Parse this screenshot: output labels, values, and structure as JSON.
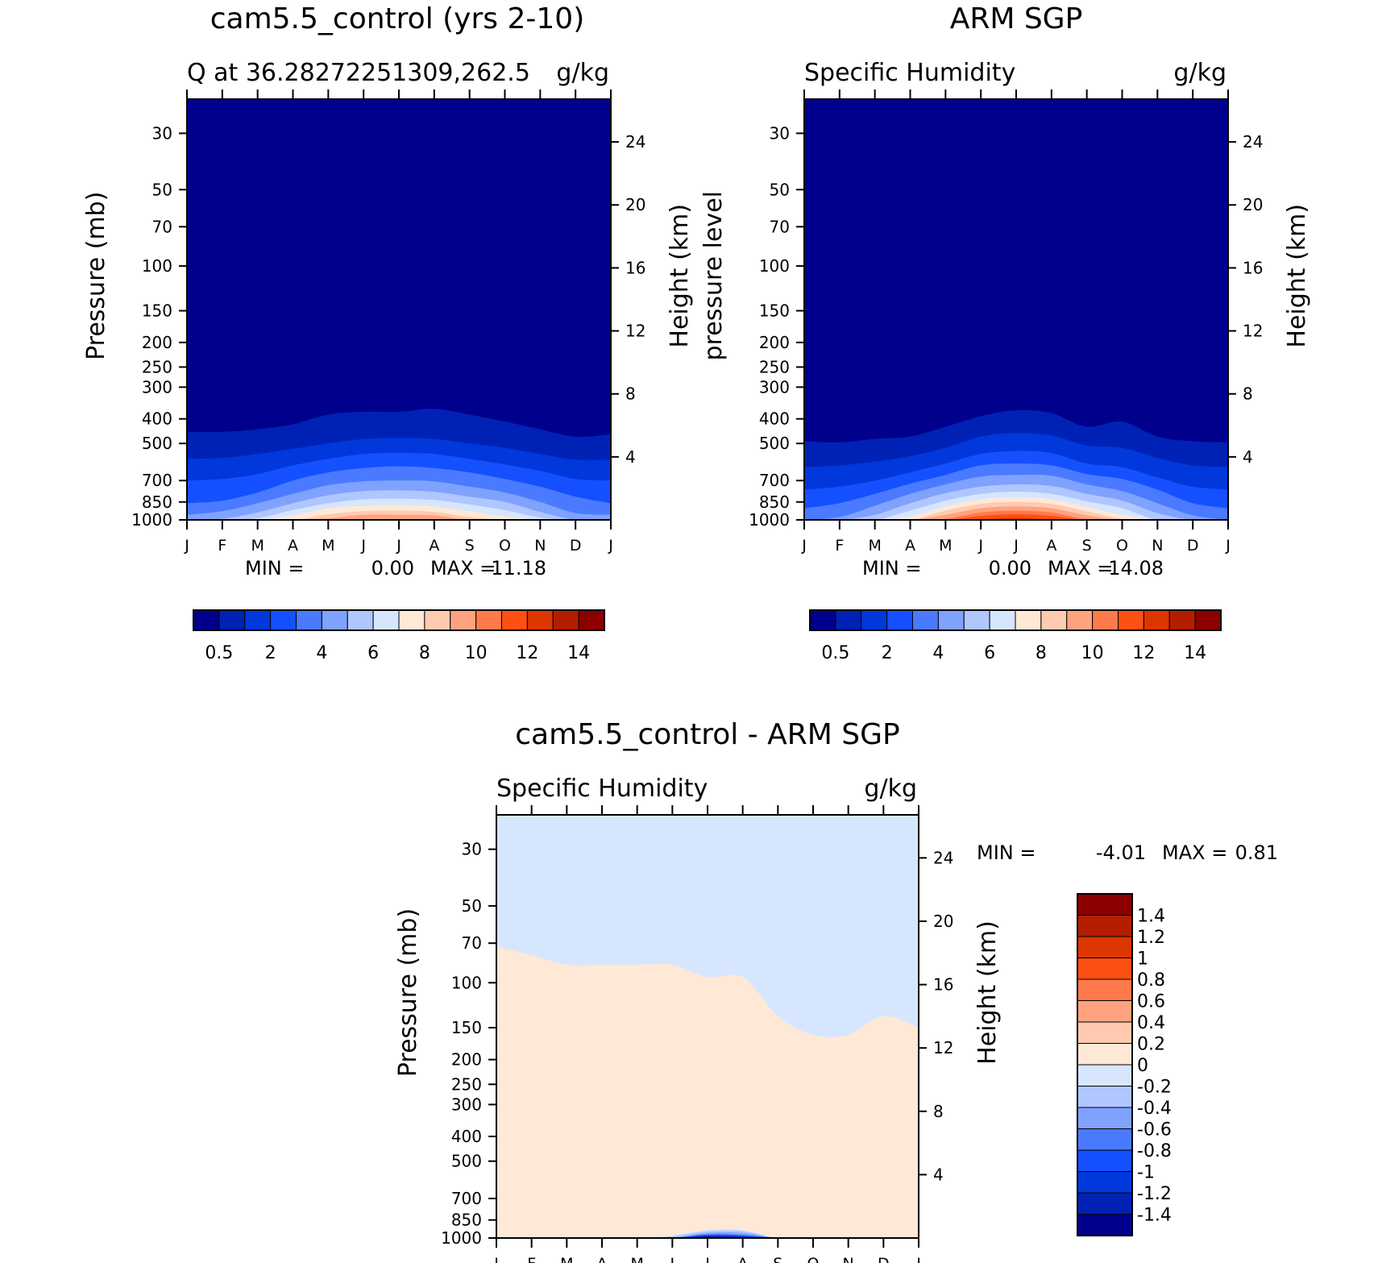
{
  "chart_data": [
    {
      "type": "heatmap",
      "title": "cam5.5_control (yrs 2-10)",
      "subtitle_left": "Q at 36.28272251309,262.5",
      "subtitle_right": "g/kg",
      "ylabel": "Pressure (mb)",
      "y2label": "Height (km)",
      "minmax": {
        "min_label": "MIN =",
        "min_value": "0.00",
        "max_label": "MAX =",
        "max_value": "11.18"
      },
      "months": [
        "J",
        "F",
        "M",
        "A",
        "M",
        "J",
        "J",
        "A",
        "S",
        "O",
        "N",
        "D",
        "J"
      ],
      "pressure_ticks": [
        "30",
        "50",
        "70",
        "100",
        "150",
        "200",
        "250",
        "300",
        "400",
        "500",
        "700",
        "850",
        "1000"
      ],
      "pressure_values": [
        30,
        50,
        70,
        100,
        150,
        200,
        250,
        300,
        400,
        500,
        700,
        850,
        1000
      ],
      "height_ticks": [
        "24",
        "20",
        "16",
        "12",
        "8",
        "4"
      ],
      "height_values": [
        24,
        20,
        16,
        12,
        8,
        4
      ],
      "ylim": [
        1000,
        22
      ],
      "legend": {
        "orientation": "horizontal",
        "placement": "bottom",
        "labels": [
          "0.5",
          "2",
          "4",
          "6",
          "8",
          "10",
          "12",
          "14"
        ]
      },
      "contour_levels_pressure": [
        [
          450,
          450,
          440,
          420,
          385,
          375,
          375,
          365,
          385,
          410,
          440,
          470,
          460
        ],
        [
          575,
          570,
          550,
          525,
          500,
          480,
          475,
          480,
          500,
          520,
          550,
          580,
          580
        ],
        [
          700,
          690,
          660,
          610,
          575,
          550,
          545,
          550,
          575,
          605,
          640,
          690,
          700
        ],
        [
          860,
          840,
          780,
          700,
          650,
          625,
          615,
          625,
          650,
          690,
          740,
          810,
          860
        ],
        [
          955,
          925,
          860,
          790,
          730,
          705,
          700,
          705,
          740,
          780,
          850,
          940,
          955
        ],
        [
          1000,
          990,
          935,
          860,
          800,
          770,
          765,
          775,
          810,
          850,
          930,
          1000,
          1000
        ],
        [
          1000,
          1000,
          985,
          915,
          860,
          830,
          825,
          835,
          870,
          915,
          980,
          1000,
          1000
        ],
        [
          1000,
          1000,
          1000,
          960,
          900,
          880,
          875,
          885,
          925,
          970,
          1000,
          1000,
          1000
        ],
        [
          1000,
          1000,
          1000,
          1000,
          950,
          925,
          920,
          930,
          975,
          1000,
          1000,
          1000,
          1000
        ],
        [
          1000,
          1000,
          1000,
          1000,
          985,
          955,
          955,
          960,
          1000,
          1000,
          1000,
          1000,
          1000
        ]
      ]
    },
    {
      "type": "heatmap",
      "title": "ARM SGP",
      "subtitle_left": "Specific Humidity",
      "subtitle_right": "g/kg",
      "ylabel": "pressure level",
      "y2label": "Height (km)",
      "minmax": {
        "min_label": "MIN =",
        "min_value": "0.00",
        "max_label": "MAX =",
        "max_value": "14.08"
      },
      "months": [
        "J",
        "F",
        "M",
        "A",
        "M",
        "J",
        "J",
        "A",
        "S",
        "O",
        "N",
        "D",
        "J"
      ],
      "pressure_ticks": [
        "30",
        "50",
        "70",
        "100",
        "150",
        "200",
        "250",
        "300",
        "400",
        "500",
        "700",
        "850",
        "1000"
      ],
      "pressure_values": [
        30,
        50,
        70,
        100,
        150,
        200,
        250,
        300,
        400,
        500,
        700,
        850,
        1000
      ],
      "height_ticks": [
        "24",
        "20",
        "16",
        "12",
        "8",
        "4"
      ],
      "height_values": [
        24,
        20,
        16,
        12,
        8,
        4
      ],
      "ylim": [
        1000,
        22
      ],
      "legend": {
        "orientation": "horizontal",
        "placement": "bottom",
        "labels": [
          "0.5",
          "2",
          "4",
          "6",
          "8",
          "10",
          "12",
          "14"
        ]
      },
      "contour_levels_pressure": [
        [
          490,
          495,
          480,
          470,
          430,
          390,
          370,
          380,
          430,
          410,
          470,
          490,
          495
        ],
        [
          620,
          610,
          590,
          560,
          520,
          470,
          455,
          465,
          510,
          520,
          570,
          610,
          620
        ],
        [
          760,
          740,
          700,
          650,
          600,
          550,
          535,
          545,
          600,
          620,
          680,
          740,
          760
        ],
        [
          900,
          860,
          790,
          720,
          665,
          610,
          600,
          610,
          660,
          690,
          760,
          860,
          900
        ],
        [
          1000,
          975,
          880,
          790,
          725,
          675,
          665,
          670,
          725,
          770,
          860,
          960,
          1000
        ],
        [
          1000,
          1000,
          955,
          860,
          785,
          740,
          725,
          735,
          790,
          840,
          940,
          1000,
          1000
        ],
        [
          1000,
          1000,
          1000,
          920,
          840,
          790,
          775,
          790,
          845,
          900,
          1000,
          1000,
          1000
        ],
        [
          1000,
          1000,
          1000,
          970,
          885,
          830,
          815,
          830,
          890,
          955,
          1000,
          1000,
          1000
        ],
        [
          1000,
          1000,
          1000,
          1000,
          920,
          865,
          850,
          865,
          925,
          990,
          1000,
          1000,
          1000
        ],
        [
          1000,
          1000,
          1000,
          1000,
          955,
          900,
          885,
          900,
          960,
          1000,
          1000,
          1000,
          1000
        ],
        [
          1000,
          1000,
          1000,
          1000,
          990,
          935,
          920,
          935,
          995,
          1000,
          1000,
          1000,
          1000
        ],
        [
          1000,
          1000,
          1000,
          1000,
          1000,
          965,
          950,
          965,
          1000,
          1000,
          1000,
          1000,
          1000
        ],
        [
          1000,
          1000,
          1000,
          1000,
          1000,
          990,
          980,
          990,
          1000,
          1000,
          1000,
          1000,
          1000
        ]
      ]
    },
    {
      "type": "heatmap",
      "title": "cam5.5_control - ARM SGP",
      "subtitle_left": "Specific Humidity",
      "subtitle_right": "g/kg",
      "ylabel": "Pressure (mb)",
      "y2label": "Height (km)",
      "minmax": {
        "min_label": "MIN =",
        "min_value": "-4.01",
        "max_label": "MAX =",
        "max_value": "0.81"
      },
      "months": [
        "J",
        "F",
        "M",
        "A",
        "M",
        "J",
        "J",
        "A",
        "S",
        "O",
        "N",
        "D",
        "J"
      ],
      "pressure_ticks": [
        "30",
        "50",
        "70",
        "100",
        "150",
        "200",
        "250",
        "300",
        "400",
        "500",
        "700",
        "850",
        "1000"
      ],
      "pressure_values": [
        30,
        50,
        70,
        100,
        150,
        200,
        250,
        300,
        400,
        500,
        700,
        850,
        1000
      ],
      "height_ticks": [
        "24",
        "20",
        "16",
        "12",
        "8",
        "4"
      ],
      "height_values": [
        24,
        20,
        16,
        12,
        8,
        4
      ],
      "ylim": [
        1000,
        22
      ],
      "legend": {
        "orientation": "vertical",
        "placement": "right",
        "labels": [
          "1.4",
          "1.2",
          "1",
          "0.8",
          "0.6",
          "0.4",
          "0.2",
          "0",
          "-0.2",
          "-0.4",
          "-0.6",
          "-0.8",
          "-1",
          "-1.2",
          "-1.4"
        ]
      },
      "background_level": -0.1,
      "moist_region": {
        "level": 0.1,
        "top_pressure": [
          72,
          78,
          85,
          85,
          85,
          85,
          95,
          95,
          135,
          160,
          160,
          135,
          150
        ]
      },
      "lower_layers": [
        {
          "level": -0.1,
          "bottom_pressure": [
            1000,
            1000,
            1000,
            1000,
            1000,
            975,
            930,
            930,
            1000,
            1000,
            1000,
            1000,
            1000
          ]
        },
        {
          "level": -0.3,
          "bottom_pressure": [
            1000,
            1000,
            1000,
            1000,
            1000,
            985,
            940,
            940,
            1000,
            1000,
            1000,
            1000,
            1000
          ]
        },
        {
          "level": -0.5,
          "bottom_pressure": [
            1000,
            1000,
            1000,
            1000,
            1000,
            995,
            955,
            955,
            1000,
            1000,
            1000,
            1000,
            1000
          ]
        },
        {
          "level": -0.9,
          "bottom_pressure": [
            1000,
            1000,
            1000,
            1000,
            1000,
            1000,
            970,
            975,
            1000,
            1000,
            1000,
            1000,
            1000
          ]
        },
        {
          "level": -1.5,
          "bottom_pressure": [
            1000,
            1000,
            1000,
            1000,
            1000,
            1000,
            985,
            990,
            1000,
            1000,
            1000,
            1000,
            1000
          ]
        }
      ]
    }
  ],
  "colors": {
    "palette": [
      "#00008c",
      "#0022b4",
      "#0038dc",
      "#1450ff",
      "#4a7aff",
      "#7fa2ff",
      "#b0c6ff",
      "#d6e6ff",
      "#ffe8d6",
      "#ffcab0",
      "#ffa27f",
      "#ff7a4a",
      "#ff5014",
      "#dc3700",
      "#b41e00",
      "#8c0000"
    ],
    "neutral": "#ffffff"
  }
}
